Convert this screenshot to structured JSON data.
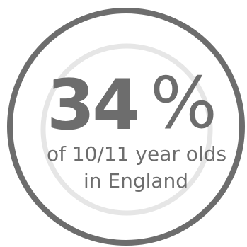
{
  "stat": {
    "number": "34",
    "unit": "%",
    "caption_line1": "of 10/11 year olds",
    "caption_line2": "in England",
    "proportion": 0.34
  },
  "colors": {
    "outer_ring": "#6d6d6d",
    "inner_ring": "#e6e6e6",
    "text": "#6d6d6d",
    "background": "#ffffff"
  }
}
